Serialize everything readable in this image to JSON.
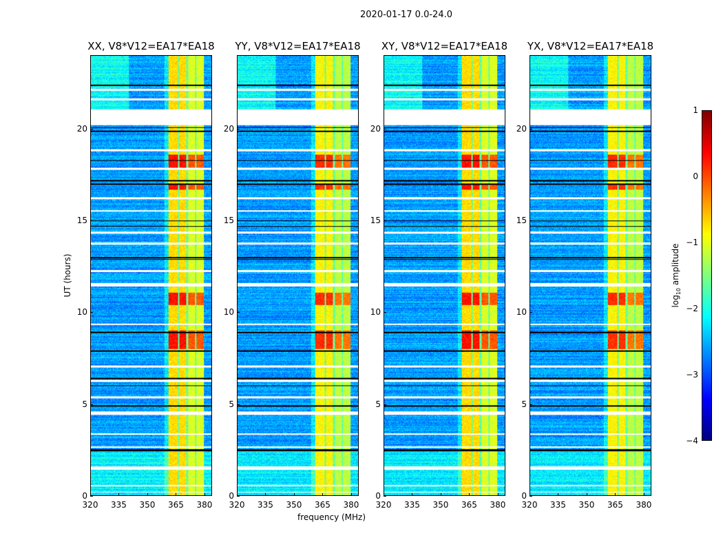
{
  "chart_data": {
    "type": "heatmap",
    "title": "2020-01-17 0.0-24.0",
    "xlabel": "frequency (MHz)",
    "ylabel": "UT (hours)",
    "xlim": [
      320,
      384
    ],
    "ylim": [
      0,
      24
    ],
    "xticks": [
      320,
      335,
      350,
      365,
      380
    ],
    "yticks": [
      0,
      5,
      10,
      15,
      20
    ],
    "panels": [
      {
        "title": "XX, V8*V12=EA17*EA18"
      },
      {
        "title": "YY, V8*V12=EA17*EA18"
      },
      {
        "title": "XY, V8*V12=EA17*EA18"
      },
      {
        "title": "YX, V8*V12=EA17*EA18"
      }
    ],
    "colorbar": {
      "label_main": "log",
      "label_sub": "10",
      "label_rest": " amplitude",
      "range": [
        -4,
        1
      ],
      "ticks": [
        "1",
        "0",
        "−1",
        "−2",
        "−3",
        "−4"
      ],
      "colormap": "jet"
    },
    "features": {
      "rfi_band_mhz": [
        361,
        380
      ],
      "rfi_subband_edges_mhz": [
        361,
        366,
        367,
        370.5,
        371.5,
        375,
        376,
        380
      ],
      "flagged_white_hours": [
        [
          20.25,
          21.1
        ],
        [
          22.1,
          22.2
        ],
        [
          21.6,
          21.7
        ],
        [
          18.8,
          18.9
        ],
        [
          17.8,
          17.9
        ],
        [
          16.2,
          16.3
        ],
        [
          15.5,
          15.6
        ],
        [
          14.3,
          14.4
        ],
        [
          13.7,
          13.8
        ],
        [
          12.2,
          12.3
        ],
        [
          11.4,
          11.6
        ],
        [
          9.3,
          9.4
        ],
        [
          7.0,
          7.1
        ],
        [
          6.2,
          6.3
        ],
        [
          5.3,
          5.4
        ],
        [
          4.4,
          4.6
        ],
        [
          3.3,
          3.4
        ],
        [
          2.6,
          2.7
        ],
        [
          1.4,
          1.6
        ],
        [
          0.5,
          0.6
        ],
        [
          0.15,
          0.2
        ]
      ],
      "black_line_hours": [
        22.4,
        22.2,
        20.1,
        19.9,
        18.3,
        17.2,
        17.0,
        15.0,
        14.7,
        13.0,
        12.9,
        8.9,
        7.9,
        6.4,
        6.0,
        4.9,
        2.5,
        2.45
      ],
      "bright_hours": [
        [
          17.8,
          18.6
        ],
        [
          16.7,
          17.0
        ],
        [
          8.0,
          9.0
        ],
        [
          10.4,
          11.1
        ]
      ]
    }
  }
}
